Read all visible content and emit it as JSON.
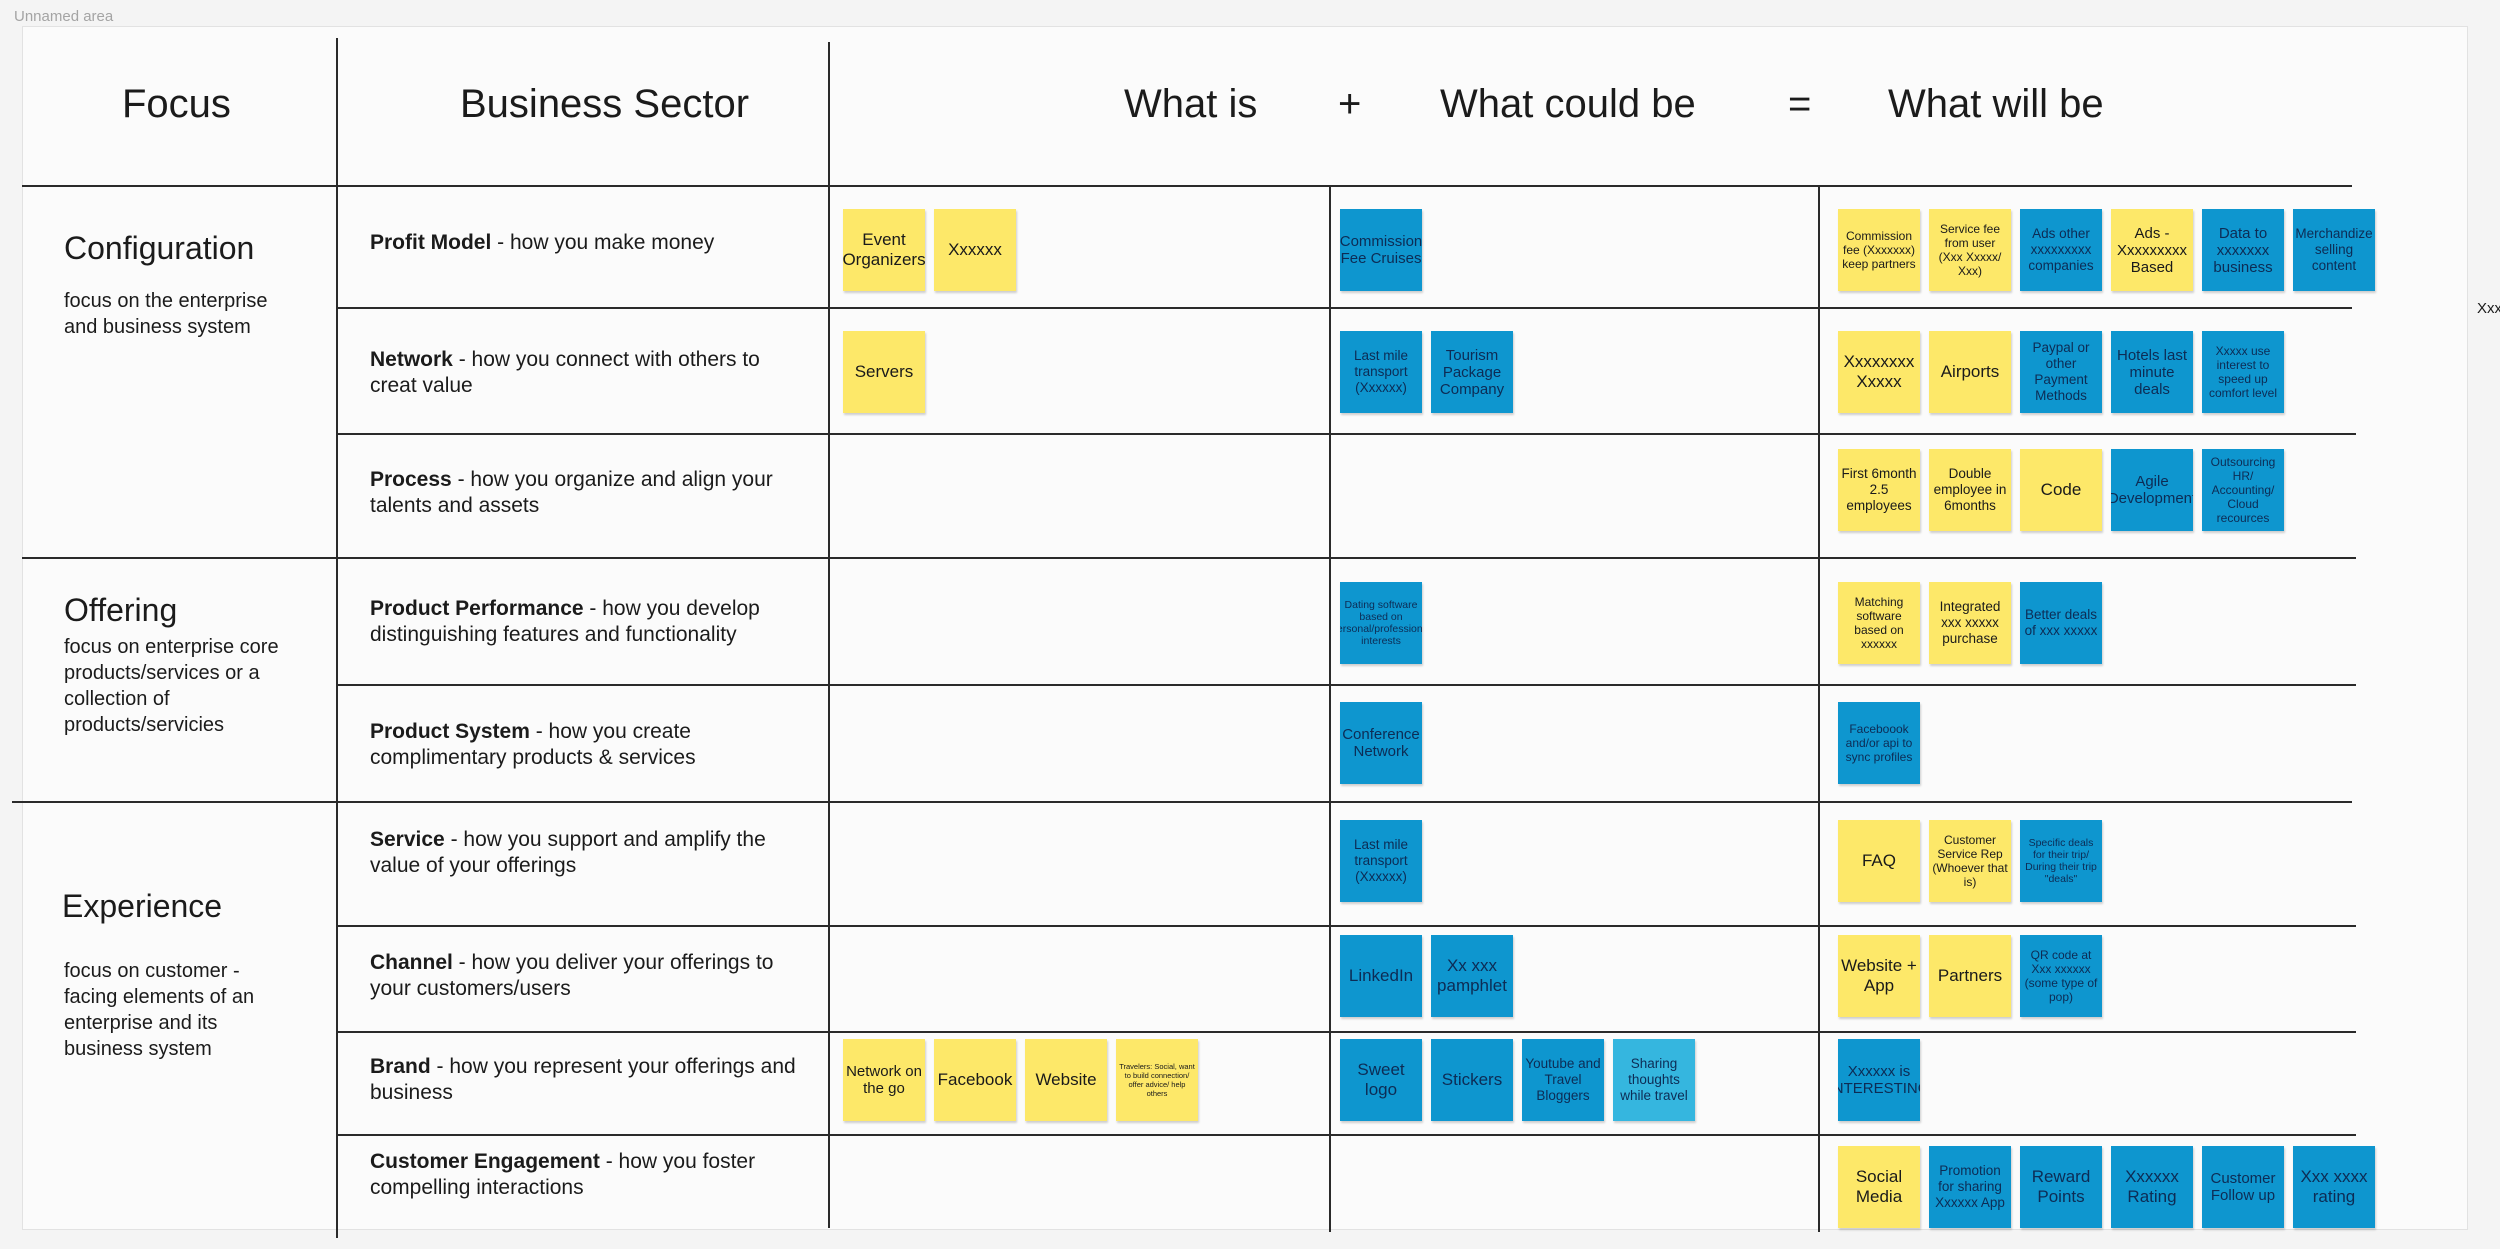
{
  "area_label": "Unnamed area",
  "headers": {
    "focus": "Focus",
    "sector": "Business Sector",
    "what_is": "What is",
    "plus": "+",
    "what_could_be": "What could be",
    "equals": "=",
    "what_will_be": "What will be"
  },
  "focus_groups": [
    {
      "title": "Configuration",
      "description": "focus on the enterprise and business system"
    },
    {
      "title": "Offering",
      "description": "focus on enterprise core products/services or a collection of products/servicies"
    },
    {
      "title": "Experience",
      "description": "focus on customer - facing elements of an enterprise and its business system"
    }
  ],
  "rows": [
    {
      "name": "Profit Model",
      "desc": " - how you make money"
    },
    {
      "name": "Network",
      "desc": " - how you connect with others to creat value"
    },
    {
      "name": "Process",
      "desc": " - how you organize and align your talents and assets"
    },
    {
      "name": "Product Performance",
      "desc": " - how you develop distinguishing features and functionality"
    },
    {
      "name": "Product System",
      "desc": " - how you create complimentary products & services"
    },
    {
      "name": "Service",
      "desc": " - how you support and amplify the value of your offerings"
    },
    {
      "name": "Channel",
      "desc": " - how you deliver your offerings to your customers/users"
    },
    {
      "name": "Brand",
      "desc": " - how you represent your offerings and business"
    },
    {
      "name": "Customer Engagement",
      "desc": " - how you foster compelling interactions"
    }
  ],
  "notes": {
    "what_is": [
      [
        {
          "text": "Event Organizers",
          "color": "yellow"
        },
        {
          "text": "Xxxxxx",
          "color": "yellow"
        }
      ],
      [
        {
          "text": "Servers",
          "color": "yellow"
        }
      ],
      [],
      [],
      [],
      [],
      [],
      [
        {
          "text": "Network on the go",
          "color": "yellow"
        },
        {
          "text": "Facebook",
          "color": "yellow"
        },
        {
          "text": "Website",
          "color": "yellow"
        },
        {
          "text": "Travelers: Social, want to build connection/ offer advice/ help others",
          "color": "yellow"
        }
      ],
      []
    ],
    "what_could_be": [
      [
        {
          "text": "Commission Fee Cruises",
          "color": "blue"
        }
      ],
      [
        {
          "text": "Last mile transport (Xxxxxx)",
          "color": "blue"
        },
        {
          "text": "Tourism Package Company",
          "color": "blue"
        }
      ],
      [],
      [
        {
          "text": "Dating software based on personal/professional interests",
          "color": "blue"
        }
      ],
      [
        {
          "text": "Conference Network",
          "color": "blue"
        }
      ],
      [
        {
          "text": "Last mile transport (Xxxxxx)",
          "color": "blue"
        }
      ],
      [
        {
          "text": "LinkedIn",
          "color": "blue"
        },
        {
          "text": "Xx xxx pamphlet",
          "color": "blue"
        }
      ],
      [
        {
          "text": "Sweet logo",
          "color": "blue"
        },
        {
          "text": "Stickers",
          "color": "blue"
        },
        {
          "text": "Youtube and Travel Bloggers",
          "color": "blue"
        },
        {
          "text": "Sharing thoughts while travel",
          "color": "lightblue"
        }
      ],
      []
    ],
    "what_will_be": [
      [
        {
          "text": "Commission fee (Xxxxxxx) keep partners",
          "color": "yellow"
        },
        {
          "text": "Service fee from user (Xxx Xxxxx/ Xxx)",
          "color": "yellow"
        },
        {
          "text": "Ads other xxxxxxxxx companies",
          "color": "blue"
        },
        {
          "text": "Ads - Xxxxxxxxx Based",
          "color": "yellow"
        },
        {
          "text": "Data to xxxxxxx business",
          "color": "blue"
        },
        {
          "text": "Merchandize selling content",
          "color": "blue"
        }
      ],
      [
        {
          "text": "Xxxxxxxx Xxxxx",
          "color": "yellow"
        },
        {
          "text": "Airports",
          "color": "yellow"
        },
        {
          "text": "Paypal or other Payment Methods",
          "color": "blue"
        },
        {
          "text": "Hotels last minute deals",
          "color": "blue"
        },
        {
          "text": "Xxxxx use interest to speed up comfort level",
          "color": "blue"
        }
      ],
      [
        {
          "text": "First 6month 2.5 employees",
          "color": "yellow"
        },
        {
          "text": "Double employee in 6months",
          "color": "yellow"
        },
        {
          "text": "Code",
          "color": "yellow"
        },
        {
          "text": "Agile Development",
          "color": "blue"
        },
        {
          "text": "Outsourcing HR/ Accounting/ Cloud recources",
          "color": "blue"
        }
      ],
      [
        {
          "text": "Matching software based on xxxxxx",
          "color": "yellow"
        },
        {
          "text": "Integrated xxx xxxxx purchase",
          "color": "yellow"
        },
        {
          "text": "Better deals of xxx xxxxx",
          "color": "blue"
        }
      ],
      [
        {
          "text": "Faceboook and/or api to sync profiles",
          "color": "blue"
        }
      ],
      [
        {
          "text": "FAQ",
          "color": "yellow"
        },
        {
          "text": "Customer Service Rep (Whoever that is)",
          "color": "yellow"
        },
        {
          "text": "Specific deals for their trip/ During their trip \"deals\"",
          "color": "blue"
        }
      ],
      [
        {
          "text": "Website + App",
          "color": "yellow"
        },
        {
          "text": "Partners",
          "color": "yellow"
        },
        {
          "text": "QR code at Xxx xxxxxx (some type of pop)",
          "color": "blue"
        }
      ],
      [
        {
          "text": "Xxxxxx is INTERESTING",
          "color": "blue"
        }
      ],
      [
        {
          "text": "Social Media",
          "color": "yellow"
        },
        {
          "text": "Promotion for sharing Xxxxxx App",
          "color": "blue"
        },
        {
          "text": "Reward Points",
          "color": "blue"
        },
        {
          "text": "Xxxxxx Rating",
          "color": "blue"
        },
        {
          "text": "Customer Follow up",
          "color": "blue"
        },
        {
          "text": "Xxx xxxx rating",
          "color": "blue"
        }
      ]
    ]
  },
  "edge_text": "Xxx",
  "colors": {
    "yellow": "#fde869",
    "blue": "#0e96cf",
    "lightblue": "#35b6df",
    "line": "#2a2a2a"
  }
}
